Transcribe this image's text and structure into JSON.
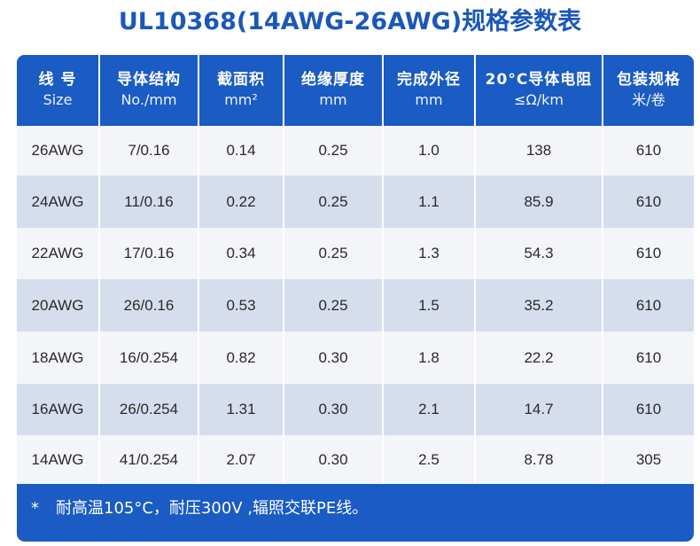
{
  "title": "UL10368(14AWG-26AWG)规格参数表",
  "table": {
    "headers": [
      {
        "main": "线 号",
        "sub": "Size"
      },
      {
        "main": "导体结构",
        "sub": "No./mm"
      },
      {
        "main": "截面积",
        "sub": "mm²"
      },
      {
        "main": "绝缘厚度",
        "sub": "mm"
      },
      {
        "main": "完成外径",
        "sub": "mm"
      },
      {
        "main": "20°C导体电阻",
        "sub": "≤Ω/km"
      },
      {
        "main": "包装规格",
        "sub": "米/卷"
      }
    ],
    "rows": [
      [
        "26AWG",
        "7/0.16",
        "0.14",
        "0.25",
        "1.0",
        "138",
        "610"
      ],
      [
        "24AWG",
        "11/0.16",
        "0.22",
        "0.25",
        "1.1",
        "85.9",
        "610"
      ],
      [
        "22AWG",
        "17/0.16",
        "0.34",
        "0.25",
        "1.3",
        "54.3",
        "610"
      ],
      [
        "20AWG",
        "26/0.16",
        "0.53",
        "0.25",
        "1.5",
        "35.2",
        "610"
      ],
      [
        "18AWG",
        "16/0.254",
        "0.82",
        "0.30",
        "1.8",
        "22.2",
        "610"
      ],
      [
        "16AWG",
        "26/0.254",
        "1.31",
        "0.30",
        "2.1",
        "14.7",
        "610"
      ],
      [
        "14AWG",
        "41/0.254",
        "2.07",
        "0.30",
        "2.5",
        "8.78",
        "305"
      ]
    ]
  },
  "note": {
    "marker": "*",
    "text": "耐高温105°C，耐压300V ,辐照交联PE线。"
  },
  "colors": {
    "accent": "#1a5bc4",
    "title": "#1a58b8",
    "row_light": "#f4f5f9",
    "row_dark": "#d6deed"
  }
}
